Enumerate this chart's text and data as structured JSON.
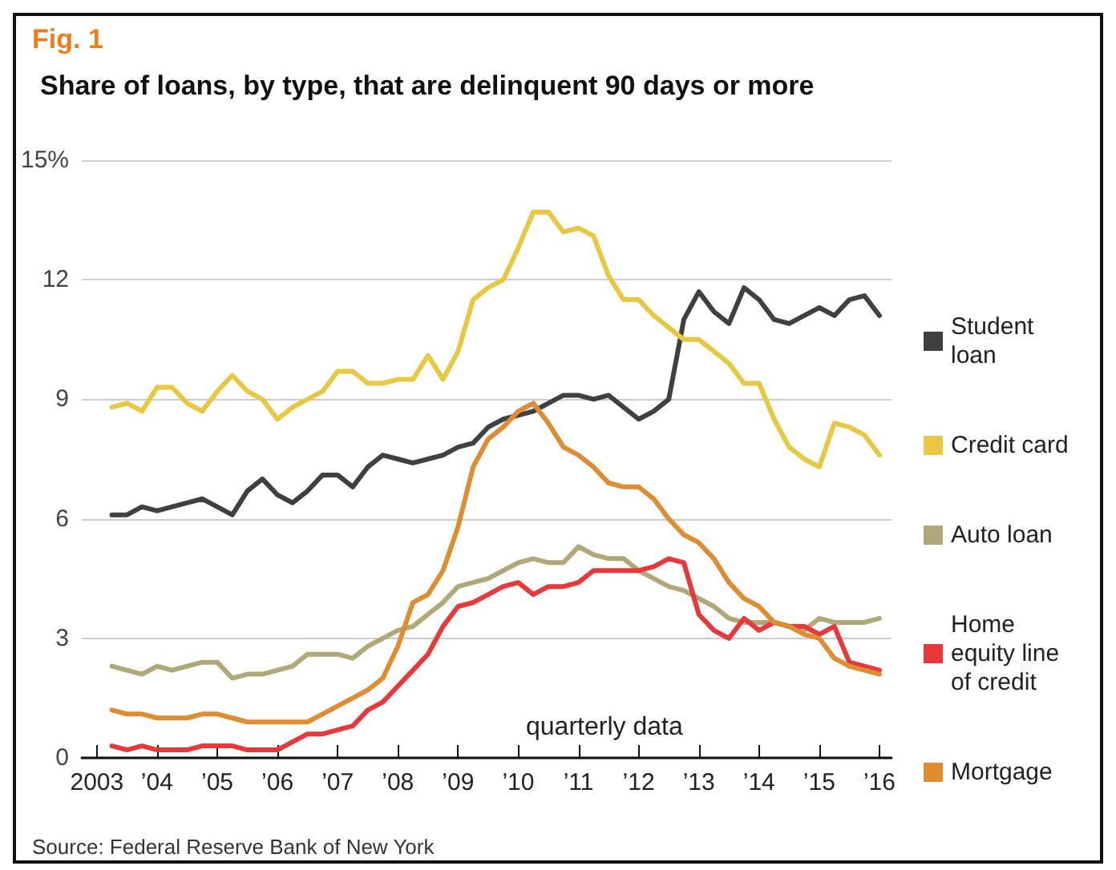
{
  "chart_data": {
    "type": "line",
    "title": "Share of loans, by type, that are delinquent 90 days or more",
    "annotations": [
      "Fig. 1",
      "quarterly data",
      "Source: Federal Reserve Bank of New York"
    ],
    "x": [
      2003.25,
      2003.5,
      2003.75,
      2004,
      2004.25,
      2004.5,
      2004.75,
      2005,
      2005.25,
      2005.5,
      2005.75,
      2006,
      2006.25,
      2006.5,
      2006.75,
      2007,
      2007.25,
      2007.5,
      2007.75,
      2008,
      2008.25,
      2008.5,
      2008.75,
      2009,
      2009.25,
      2009.5,
      2009.75,
      2010,
      2010.25,
      2010.5,
      2010.75,
      2011,
      2011.25,
      2011.5,
      2011.75,
      2012,
      2012.25,
      2012.5,
      2012.75,
      2013,
      2013.25,
      2013.5,
      2013.75,
      2014,
      2014.25,
      2014.5,
      2014.75,
      2015,
      2015.25,
      2015.5,
      2015.75,
      2016
    ],
    "series": [
      {
        "name": "Student loan",
        "color": "#404040",
        "values": [
          6.1,
          6.1,
          6.3,
          6.2,
          6.3,
          6.4,
          6.5,
          6.3,
          6.1,
          6.7,
          7.0,
          6.6,
          6.4,
          6.7,
          7.1,
          7.1,
          6.8,
          7.3,
          7.6,
          7.5,
          7.4,
          7.5,
          7.6,
          7.8,
          7.9,
          8.3,
          8.5,
          8.6,
          8.7,
          8.9,
          9.1,
          9.1,
          9.0,
          9.1,
          8.8,
          8.5,
          8.7,
          9.0,
          11.0,
          11.7,
          11.2,
          10.9,
          11.8,
          11.5,
          11.0,
          10.9,
          11.1,
          11.3,
          11.1,
          11.5,
          11.6,
          11.1
        ]
      },
      {
        "name": "Credit card",
        "color": "#e8c840",
        "values": [
          8.8,
          8.9,
          8.7,
          9.3,
          9.3,
          8.9,
          8.7,
          9.2,
          9.6,
          9.2,
          9.0,
          8.5,
          8.8,
          9.0,
          9.2,
          9.7,
          9.7,
          9.4,
          9.4,
          9.5,
          9.5,
          10.1,
          9.5,
          10.2,
          11.5,
          11.8,
          12.0,
          12.8,
          13.7,
          13.7,
          13.2,
          13.3,
          13.1,
          12.1,
          11.5,
          11.5,
          11.1,
          10.8,
          10.5,
          10.5,
          10.2,
          9.9,
          9.4,
          9.4,
          8.5,
          7.8,
          7.5,
          7.3,
          8.4,
          8.3,
          8.1,
          7.6
        ]
      },
      {
        "name": "Auto loan",
        "color": "#b0a878",
        "values": [
          2.3,
          2.2,
          2.1,
          2.3,
          2.2,
          2.3,
          2.4,
          2.4,
          2.0,
          2.1,
          2.1,
          2.2,
          2.3,
          2.6,
          2.6,
          2.6,
          2.5,
          2.8,
          3.0,
          3.2,
          3.3,
          3.6,
          3.9,
          4.3,
          4.4,
          4.5,
          4.7,
          4.9,
          5.0,
          4.9,
          4.9,
          5.3,
          5.1,
          5.0,
          5.0,
          4.7,
          4.5,
          4.3,
          4.2,
          4.0,
          3.8,
          3.5,
          3.4,
          3.4,
          3.4,
          3.3,
          3.2,
          3.5,
          3.4,
          3.4,
          3.4,
          3.5
        ]
      },
      {
        "name": "Home equity line of credit",
        "color": "#e8383c",
        "values": [
          0.3,
          0.2,
          0.3,
          0.2,
          0.2,
          0.2,
          0.3,
          0.3,
          0.3,
          0.2,
          0.2,
          0.2,
          0.4,
          0.6,
          0.6,
          0.7,
          0.8,
          1.2,
          1.4,
          1.8,
          2.2,
          2.6,
          3.3,
          3.8,
          3.9,
          4.1,
          4.3,
          4.4,
          4.1,
          4.3,
          4.3,
          4.4,
          4.7,
          4.7,
          4.7,
          4.7,
          4.8,
          5.0,
          4.9,
          3.6,
          3.2,
          3.0,
          3.5,
          3.2,
          3.4,
          3.3,
          3.3,
          3.1,
          3.3,
          2.4,
          2.3,
          2.2
        ]
      },
      {
        "name": "Mortgage",
        "color": "#e08c30",
        "values": [
          1.2,
          1.1,
          1.1,
          1.0,
          1.0,
          1.0,
          1.1,
          1.1,
          1.0,
          0.9,
          0.9,
          0.9,
          0.9,
          0.9,
          1.1,
          1.3,
          1.5,
          1.7,
          2.0,
          2.8,
          3.9,
          4.1,
          4.7,
          5.8,
          7.3,
          8.0,
          8.3,
          8.7,
          8.9,
          8.4,
          7.8,
          7.6,
          7.3,
          6.9,
          6.8,
          6.8,
          6.5,
          6.0,
          5.6,
          5.4,
          5.0,
          4.4,
          4.0,
          3.8,
          3.4,
          3.3,
          3.1,
          3.0,
          2.5,
          2.3,
          2.2,
          2.1
        ]
      }
    ],
    "xlim": [
      2002.75,
      2016.2
    ],
    "xticks": [
      {
        "value": 2003,
        "label": "2003"
      },
      {
        "value": 2004,
        "label": "’04"
      },
      {
        "value": 2005,
        "label": "’05"
      },
      {
        "value": 2006,
        "label": "’06"
      },
      {
        "value": 2007,
        "label": "’07"
      },
      {
        "value": 2008,
        "label": "’08"
      },
      {
        "value": 2009,
        "label": "’09"
      },
      {
        "value": 2010,
        "label": "’10"
      },
      {
        "value": 2011,
        "label": "’11"
      },
      {
        "value": 2012,
        "label": "’12"
      },
      {
        "value": 2013,
        "label": "’13"
      },
      {
        "value": 2014,
        "label": "’14"
      },
      {
        "value": 2015,
        "label": "’15"
      },
      {
        "value": 2016,
        "label": "’16"
      }
    ],
    "ylim": [
      0,
      15
    ],
    "yticks": [
      0,
      3,
      6,
      9,
      12,
      {
        "value": 15,
        "label": "15%"
      }
    ],
    "grid": "y",
    "legend": "right",
    "marker": "none",
    "line_style": "solid"
  }
}
